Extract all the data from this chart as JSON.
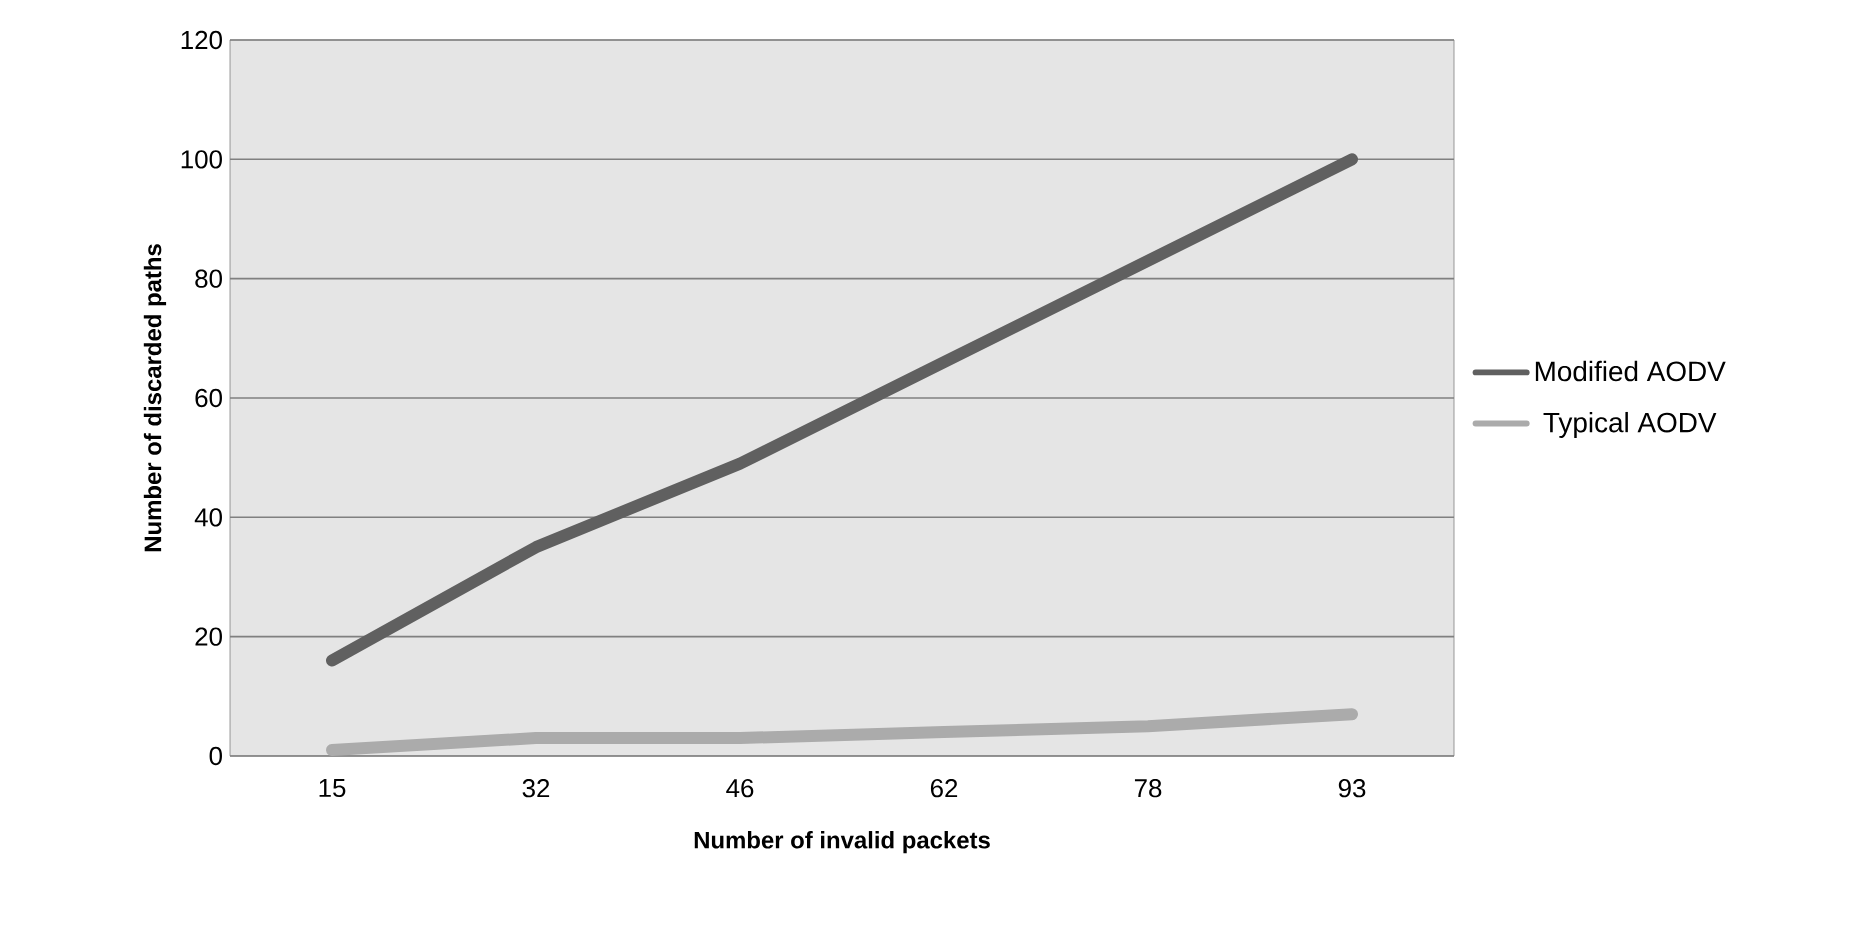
{
  "chart_data": {
    "type": "line",
    "xlabel": "Number of invalid packets",
    "ylabel": "Number of  discarded paths",
    "categories": [
      "15",
      "32",
      "46",
      "62",
      "78",
      "93"
    ],
    "series": [
      {
        "name": "Modified AODV",
        "color": "#606060",
        "values": [
          16,
          35,
          49,
          66,
          83,
          100
        ]
      },
      {
        "name": "Typical AODV",
        "color": "#ababab",
        "values": [
          1,
          3,
          3,
          4,
          5,
          7
        ]
      }
    ],
    "ylim": [
      0,
      120
    ],
    "yticks": [
      0,
      20,
      40,
      60,
      80,
      100,
      120
    ],
    "grid": "y",
    "legend": "right",
    "marker": "none",
    "line_style": "solid"
  }
}
